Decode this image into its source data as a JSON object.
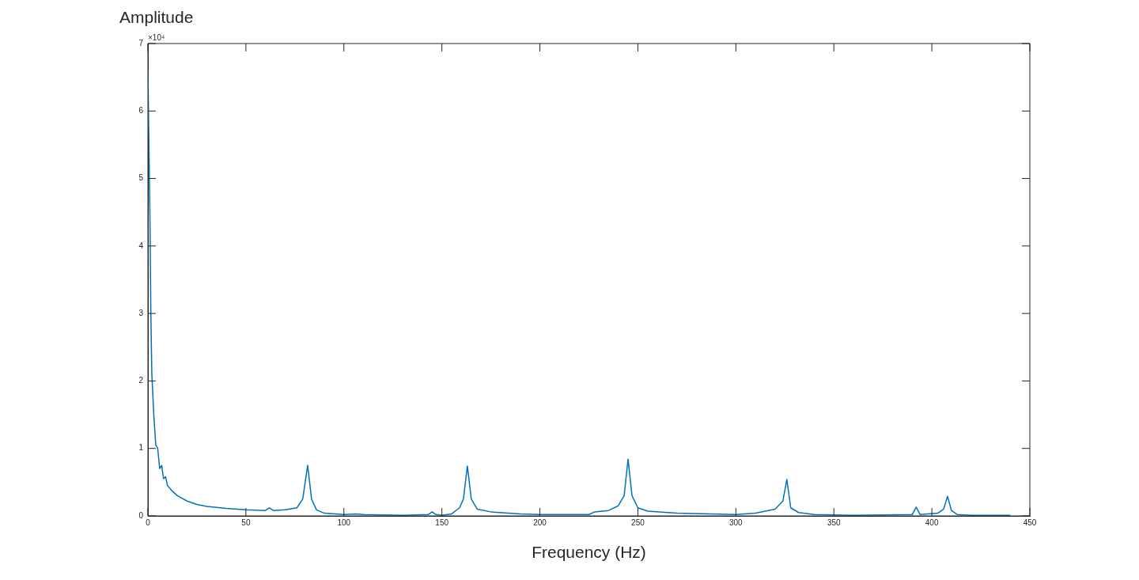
{
  "chart_data": {
    "type": "line",
    "xlabel": "Frequency (Hz)",
    "ylabel": "Amplitude",
    "annotations": [
      "×10⁴"
    ],
    "xlim": [
      0,
      450
    ],
    "xticks": [
      0,
      50,
      100,
      150,
      200,
      250,
      300,
      350,
      400,
      450
    ],
    "ylim": [
      0,
      7
    ],
    "yticks": [
      0,
      1,
      2,
      3,
      4,
      5,
      6,
      7
    ],
    "grid": false,
    "legend": false,
    "marker": "none",
    "line_style": "solid",
    "x": [
      0,
      1,
      1.5,
      2,
      3,
      4,
      5,
      6,
      7,
      8,
      9,
      10,
      12,
      15,
      20,
      25,
      30,
      40,
      50,
      60,
      62,
      64,
      70,
      76,
      79,
      81.5,
      83.5,
      86,
      90,
      100,
      106,
      110,
      130,
      143,
      145,
      147,
      150,
      155,
      159,
      161,
      163,
      165,
      168,
      175,
      190,
      200,
      225,
      228,
      235,
      240,
      243,
      245,
      247,
      250,
      255,
      270,
      300,
      310,
      320,
      324,
      326,
      328,
      332,
      340,
      360,
      390,
      392,
      394,
      403,
      406,
      408,
      410,
      413,
      420,
      440
    ],
    "series": [
      {
        "color": "#0072bd",
        "values": [
          6.6,
          4.5,
          3,
          2.1,
          1.5,
          1.05,
          1,
          0.7,
          0.75,
          0.55,
          0.58,
          0.45,
          0.38,
          0.3,
          0.22,
          0.17,
          0.14,
          0.11,
          0.09,
          0.08,
          0.12,
          0.08,
          0.09,
          0.12,
          0.25,
          0.75,
          0.25,
          0.09,
          0.04,
          0.02,
          0.03,
          0.02,
          0.01,
          0.02,
          0.06,
          0.02,
          0.01,
          0.03,
          0.12,
          0.25,
          0.74,
          0.25,
          0.1,
          0.06,
          0.03,
          0.02,
          0.02,
          0.06,
          0.08,
          0.15,
          0.3,
          0.84,
          0.3,
          0.12,
          0.07,
          0.04,
          0.02,
          0.04,
          0.1,
          0.22,
          0.54,
          0.12,
          0.05,
          0.02,
          0.01,
          0.02,
          0.13,
          0.02,
          0.04,
          0.1,
          0.29,
          0.08,
          0.02,
          0.01,
          0.01
        ]
      }
    ]
  }
}
